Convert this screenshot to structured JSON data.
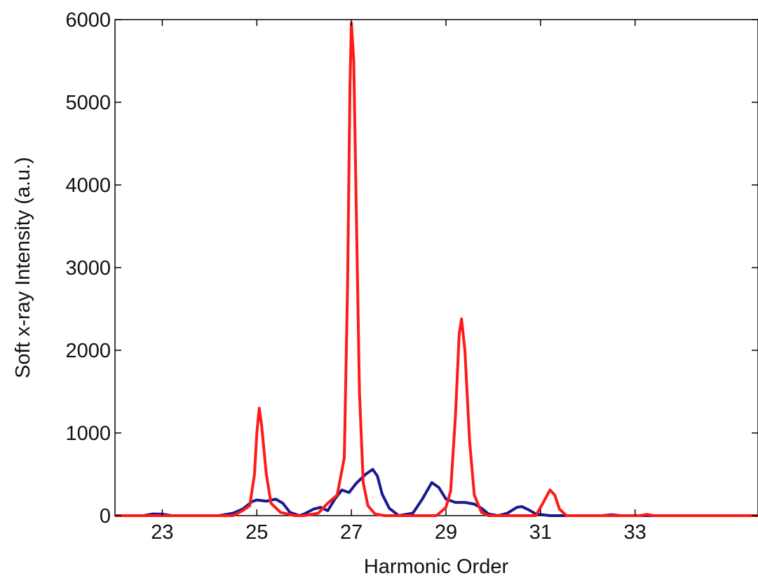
{
  "chart_data": {
    "type": "line",
    "title": "",
    "xlabel": "Harmonic Order",
    "ylabel": "Soft x-ray Intensity (a.u.)",
    "xlim": [
      22,
      35.6
    ],
    "ylim": [
      0,
      6000
    ],
    "x_ticks": [
      23,
      25,
      27,
      29,
      31,
      33
    ],
    "y_ticks": [
      0,
      1000,
      2000,
      3000,
      4000,
      5000,
      6000
    ],
    "grid": false,
    "legend": "none",
    "series": [
      {
        "color": "#1a1a8c",
        "points": [
          [
            22.0,
            0
          ],
          [
            22.6,
            0
          ],
          [
            22.8,
            20
          ],
          [
            23.0,
            18
          ],
          [
            23.2,
            0
          ],
          [
            24.2,
            0
          ],
          [
            24.5,
            30
          ],
          [
            24.7,
            80
          ],
          [
            24.9,
            170
          ],
          [
            25.0,
            190
          ],
          [
            25.2,
            175
          ],
          [
            25.4,
            200
          ],
          [
            25.55,
            150
          ],
          [
            25.7,
            40
          ],
          [
            25.9,
            0
          ],
          [
            26.0,
            20
          ],
          [
            26.2,
            80
          ],
          [
            26.35,
            100
          ],
          [
            26.5,
            60
          ],
          [
            26.65,
            200
          ],
          [
            26.8,
            310
          ],
          [
            26.95,
            280
          ],
          [
            27.1,
            390
          ],
          [
            27.3,
            500
          ],
          [
            27.45,
            560
          ],
          [
            27.55,
            480
          ],
          [
            27.65,
            260
          ],
          [
            27.8,
            90
          ],
          [
            28.0,
            0
          ],
          [
            28.3,
            30
          ],
          [
            28.5,
            200
          ],
          [
            28.7,
            400
          ],
          [
            28.85,
            340
          ],
          [
            29.0,
            200
          ],
          [
            29.2,
            160
          ],
          [
            29.4,
            160
          ],
          [
            29.6,
            140
          ],
          [
            29.75,
            90
          ],
          [
            29.9,
            20
          ],
          [
            30.1,
            0
          ],
          [
            30.3,
            30
          ],
          [
            30.5,
            100
          ],
          [
            30.6,
            110
          ],
          [
            30.75,
            70
          ],
          [
            30.9,
            20
          ],
          [
            31.2,
            0
          ],
          [
            32.3,
            0
          ],
          [
            32.5,
            10
          ],
          [
            32.7,
            0
          ],
          [
            35.6,
            0
          ]
        ]
      },
      {
        "color": "#ff1a1a",
        "points": [
          [
            22.0,
            0
          ],
          [
            24.5,
            0
          ],
          [
            24.7,
            60
          ],
          [
            24.85,
            120
          ],
          [
            24.95,
            500
          ],
          [
            25.0,
            1000
          ],
          [
            25.05,
            1300
          ],
          [
            25.1,
            1100
          ],
          [
            25.2,
            500
          ],
          [
            25.3,
            150
          ],
          [
            25.5,
            40
          ],
          [
            25.8,
            0
          ],
          [
            26.0,
            0
          ],
          [
            26.3,
            30
          ],
          [
            26.5,
            150
          ],
          [
            26.7,
            250
          ],
          [
            26.85,
            700
          ],
          [
            26.92,
            2800
          ],
          [
            26.97,
            5200
          ],
          [
            27.0,
            5960
          ],
          [
            27.05,
            5500
          ],
          [
            27.1,
            3800
          ],
          [
            27.17,
            1500
          ],
          [
            27.25,
            400
          ],
          [
            27.35,
            120
          ],
          [
            27.5,
            20
          ],
          [
            27.7,
            0
          ],
          [
            28.8,
            0
          ],
          [
            29.0,
            100
          ],
          [
            29.1,
            300
          ],
          [
            29.2,
            1200
          ],
          [
            29.28,
            2200
          ],
          [
            29.33,
            2380
          ],
          [
            29.4,
            2000
          ],
          [
            29.5,
            900
          ],
          [
            29.6,
            250
          ],
          [
            29.75,
            40
          ],
          [
            29.9,
            0
          ],
          [
            30.9,
            0
          ],
          [
            31.05,
            150
          ],
          [
            31.2,
            310
          ],
          [
            31.3,
            250
          ],
          [
            31.4,
            80
          ],
          [
            31.55,
            0
          ],
          [
            33.1,
            0
          ],
          [
            33.25,
            15
          ],
          [
            33.4,
            0
          ],
          [
            35.6,
            0
          ]
        ]
      }
    ]
  }
}
